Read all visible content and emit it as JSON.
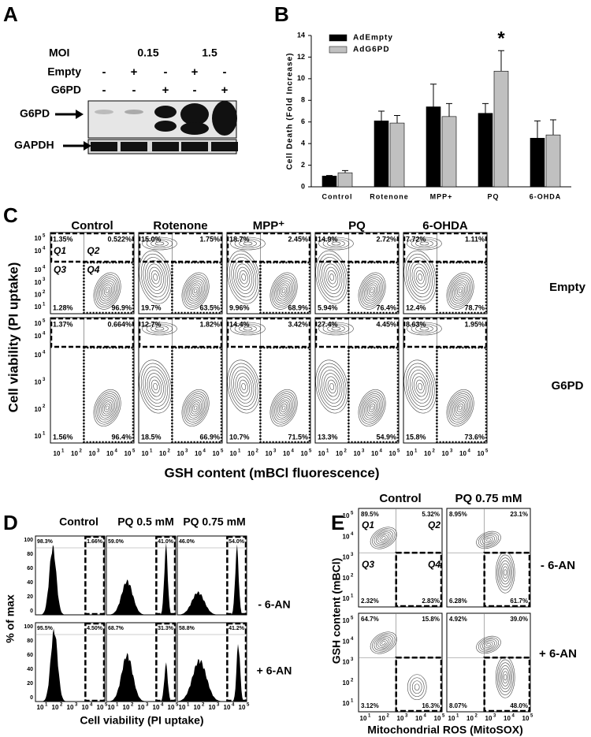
{
  "panel_labels": [
    "A",
    "B",
    "C",
    "D",
    "E"
  ],
  "panel_a": {
    "moi_label": "MOI",
    "moi_values": [
      "0.15",
      "1.5"
    ],
    "rows": [
      {
        "name": "Empty",
        "signs": [
          "-",
          "+",
          "-",
          "+",
          "-"
        ]
      },
      {
        "name": "G6PD",
        "signs": [
          "-",
          "-",
          "+",
          "-",
          "+"
        ]
      }
    ],
    "bands": [
      "G6PD",
      "GAPDH"
    ]
  },
  "chart_data": {
    "type": "bar",
    "y_label": "Cell Death (Fold Increase)",
    "categories": [
      "Control",
      "Rotenone",
      "MPP+",
      "PQ",
      "6-OHDA"
    ],
    "series": [
      {
        "name": "AdEmpty",
        "color": "#000000",
        "values": [
          1.0,
          6.1,
          7.4,
          6.8,
          4.5
        ],
        "errors": [
          0.05,
          0.9,
          2.1,
          0.9,
          1.6
        ]
      },
      {
        "name": "AdG6PD",
        "color": "#c0c0c0",
        "values": [
          1.3,
          5.9,
          6.5,
          10.7,
          4.8
        ],
        "errors": [
          0.2,
          0.7,
          1.2,
          1.9,
          1.4
        ]
      }
    ],
    "ylim": [
      0,
      14
    ],
    "yticks": [
      0,
      2,
      4,
      6,
      8,
      10,
      12,
      14
    ],
    "annotation": {
      "text": "*",
      "series": 1,
      "category": 3
    }
  },
  "panel_c": {
    "columns": [
      "Control",
      "Rotenone",
      "MPP⁺",
      "PQ",
      "6-OHDA"
    ],
    "rows": [
      "Empty",
      "G6PD"
    ],
    "quadrant_names": [
      "Q1",
      "Q2",
      "Q3",
      "Q4"
    ],
    "percentages": [
      [
        [
          "1.35%",
          "0.522%",
          "1.28%",
          "96.9%"
        ],
        [
          "15.0%",
          "1.75%",
          "19.7%",
          "63.5%"
        ],
        [
          "18.7%",
          "2.45%",
          "9.96%",
          "68.9%"
        ],
        [
          "14.9%",
          "2.72%",
          "5.94%",
          "76.4%"
        ],
        [
          "7.72%",
          "1.11%",
          "12.4%",
          "78.7%"
        ]
      ],
      [
        [
          "1.37%",
          "0.664%",
          "1.56%",
          "96.4%"
        ],
        [
          "12.7%",
          "1.82%",
          "18.5%",
          "66.9%"
        ],
        [
          "14.4%",
          "3.42%",
          "10.7%",
          "71.5%"
        ],
        [
          "27.4%",
          "4.45%",
          "13.3%",
          "54.9%"
        ],
        [
          "8.63%",
          "1.95%",
          "15.8%",
          "73.6%"
        ]
      ]
    ],
    "y_label": "Cell viability (PI uptake)",
    "x_label": "GSH content (mBCl fluorescence)",
    "log_base": "10",
    "exponents": [
      "1",
      "2",
      "3",
      "4",
      "5"
    ]
  },
  "panel_d": {
    "columns": [
      "Control",
      "PQ 0.5 mM",
      "PQ 0.75 mM"
    ],
    "rows": [
      "- 6-AN",
      "+ 6-AN"
    ],
    "percentages": [
      [
        [
          "98.3%",
          "1.66%"
        ],
        [
          "59.0%",
          "41.0%"
        ],
        [
          "46.0%",
          "54.0%"
        ]
      ],
      [
        [
          "95.5%",
          "4.50%"
        ],
        [
          "68.7%",
          "31.3%"
        ],
        [
          "58.8%",
          "41.2%"
        ]
      ]
    ],
    "y_label": "% of max",
    "yticks": [
      "100",
      "80",
      "60",
      "40",
      "20",
      "0"
    ],
    "x_label": "Cell viability (PI uptake)",
    "log_base": "10",
    "exponents": [
      "1",
      "2",
      "3",
      "4",
      "5"
    ]
  },
  "panel_e": {
    "columns": [
      "Control",
      "PQ 0.75 mM"
    ],
    "rows": [
      "- 6-AN",
      "+ 6-AN"
    ],
    "quadrant_names": [
      "Q1",
      "Q2",
      "Q3",
      "Q4"
    ],
    "percentages": [
      [
        [
          "89.5%",
          "5.32%",
          "2.32%",
          "2.83%"
        ],
        [
          "8.95%",
          "23.1%",
          "6.28%",
          "61.7%"
        ]
      ],
      [
        [
          "64.7%",
          "15.8%",
          "3.12%",
          "16.3%"
        ],
        [
          "4.92%",
          "39.0%",
          "8.07%",
          "48.0%"
        ]
      ]
    ],
    "y_label": "GSH content (mBCl)",
    "x_label": "Mitochondrial ROS (MitoSOX)",
    "log_base": "10",
    "exponents": [
      "1",
      "2",
      "3",
      "4",
      "5"
    ]
  }
}
